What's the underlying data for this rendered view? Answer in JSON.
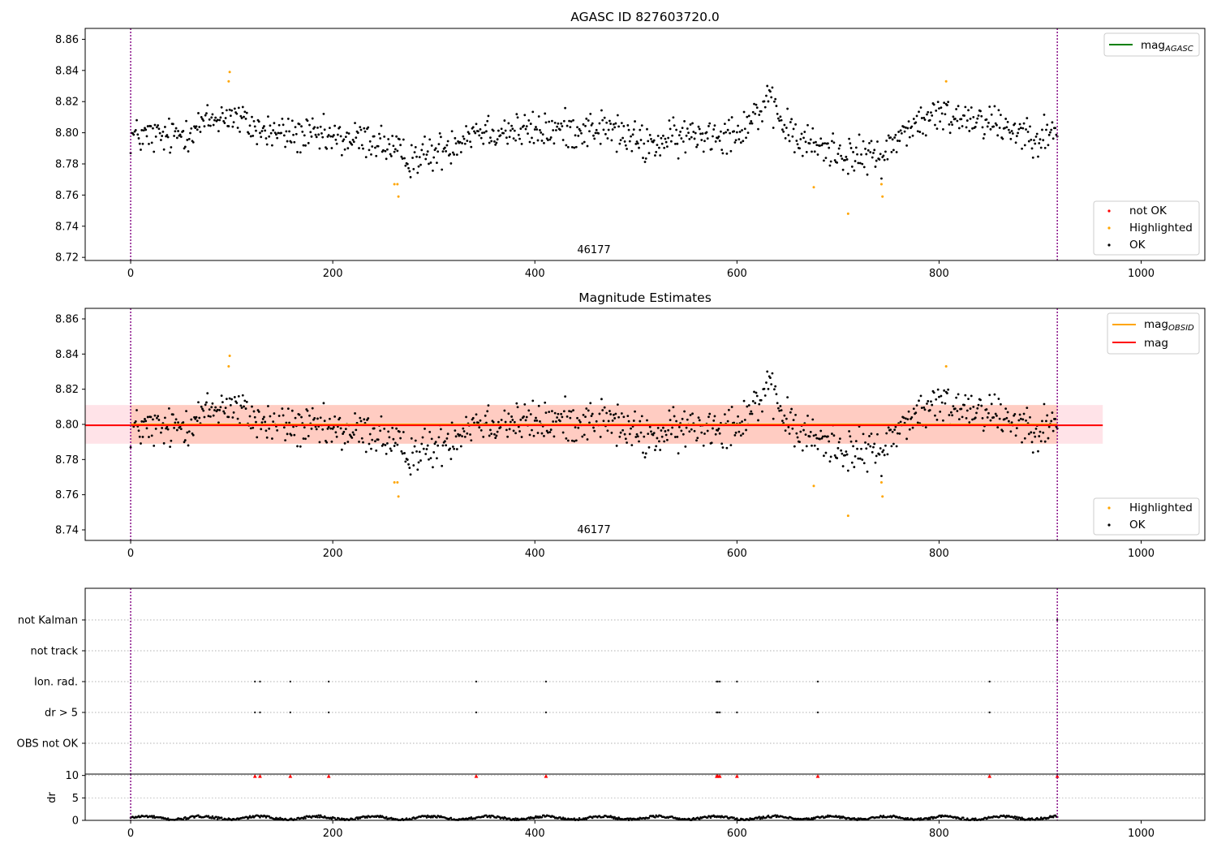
{
  "chart_data": [
    {
      "id": "top",
      "type": "scatter",
      "title": "AGASC ID 827603720.0",
      "xlim": [
        -45,
        1063
      ],
      "ylim": [
        8.718,
        8.867
      ],
      "xticks": [
        0,
        200,
        400,
        600,
        800,
        1000
      ],
      "yticks": [
        8.72,
        8.74,
        8.76,
        8.78,
        8.8,
        8.82,
        8.84,
        8.86
      ],
      "ytick_decimals": 2,
      "annotation": "46177",
      "annotation_x": 460,
      "vlines_x": [
        0,
        917
      ],
      "legend_lines": [
        {
          "label": "mag",
          "sub": "AGASC",
          "color": "#008000"
        }
      ],
      "legend_points": [
        {
          "label": "not OK",
          "color": "#ff0000"
        },
        {
          "label": "Highlighted",
          "color": "#ffa500"
        },
        {
          "label": "OK",
          "color": "#000000"
        }
      ],
      "series": [
        {
          "label": "Highlighted",
          "color": "#ffa500",
          "points": [
            [
              97,
              8.833
            ],
            [
              98,
              8.839
            ],
            [
              261,
              8.767
            ],
            [
              264,
              8.767
            ],
            [
              265,
              8.759
            ],
            [
              676,
              8.765
            ],
            [
              710,
              8.748
            ],
            [
              743,
              8.767
            ],
            [
              744,
              8.759
            ],
            [
              807,
              8.833
            ]
          ]
        }
      ]
    },
    {
      "id": "middle",
      "type": "scatter",
      "title": "Magnitude Estimates",
      "xlim": [
        -45,
        1063
      ],
      "ylim": [
        8.734,
        8.866
      ],
      "xticks": [
        0,
        200,
        400,
        600,
        800,
        1000
      ],
      "yticks": [
        8.74,
        8.76,
        8.78,
        8.8,
        8.82,
        8.84,
        8.86
      ],
      "ytick_decimals": 2,
      "annotation": "46177",
      "annotation_x": 460,
      "vlines_x": [
        0,
        917
      ],
      "bands": [
        {
          "x0": -45,
          "x1": 962,
          "y0": 8.789,
          "y1": 8.811,
          "color": "#ffc0cb",
          "opacity": 0.45
        },
        {
          "x0": 0,
          "x1": 917,
          "y0": 8.789,
          "y1": 8.811,
          "color": "#ffa07a",
          "opacity": 0.35
        }
      ],
      "hlines": [
        {
          "y": 8.8,
          "x0": 0,
          "x1": 917,
          "color": "#ffa500"
        },
        {
          "y": 8.7995,
          "x0": -45,
          "x1": 962,
          "color": "#ff0000"
        }
      ],
      "legend_lines": [
        {
          "label": "mag",
          "sub": "OBSID",
          "color": "#ffa500"
        },
        {
          "label": "mag",
          "sub": "",
          "color": "#ff0000"
        }
      ],
      "legend_points": [
        {
          "label": "Highlighted",
          "color": "#ffa500"
        },
        {
          "label": "OK",
          "color": "#000000"
        }
      ],
      "series": [
        {
          "label": "Highlighted",
          "color": "#ffa500",
          "points": [
            [
              97,
              8.833
            ],
            [
              98,
              8.839
            ],
            [
              261,
              8.767
            ],
            [
              264,
              8.767
            ],
            [
              265,
              8.759
            ],
            [
              676,
              8.765
            ],
            [
              710,
              8.748
            ],
            [
              743,
              8.767
            ],
            [
              744,
              8.759
            ],
            [
              807,
              8.833
            ]
          ]
        }
      ]
    },
    {
      "id": "flags",
      "type": "scatter",
      "title": "",
      "xlim": [
        -45,
        1063
      ],
      "categories": [
        "not Kalman",
        "not track",
        "Ion. rad.",
        "dr > 5",
        "OBS not OK"
      ],
      "vlines_x": [
        0,
        917
      ],
      "series": [
        {
          "label": "not Kalman",
          "points_x": [
            917
          ]
        },
        {
          "label": "Ion. rad.",
          "points_x": [
            123,
            128,
            158,
            196,
            342,
            411,
            580,
            581,
            583,
            600,
            680,
            850
          ]
        },
        {
          "label": "dr > 5",
          "points_x": [
            123,
            128,
            158,
            196,
            342,
            411,
            580,
            581,
            583,
            600,
            680,
            850
          ]
        }
      ]
    },
    {
      "id": "dr",
      "type": "scatter",
      "title": "",
      "ylabel": "dr",
      "xlim": [
        -45,
        1063
      ],
      "ylim": [
        0,
        10.3
      ],
      "xticks": [
        0,
        200,
        400,
        600,
        800,
        1000
      ],
      "yticks": [
        0,
        5,
        10
      ],
      "ytick_decimals": 0,
      "vlines_x": [
        0,
        917
      ],
      "series": [
        {
          "label": "dr > 5",
          "color": "#ff0000",
          "marker": "triangle",
          "points": [
            [
              123,
              9.8
            ],
            [
              128,
              9.8
            ],
            [
              158,
              9.8
            ],
            [
              196,
              9.8
            ],
            [
              342,
              9.8
            ],
            [
              411,
              9.8
            ],
            [
              580,
              9.8
            ],
            [
              581,
              9.8
            ],
            [
              583,
              9.8
            ],
            [
              600,
              9.8
            ],
            [
              680,
              9.8
            ],
            [
              850,
              9.8
            ],
            [
              917,
              9.8
            ]
          ]
        }
      ]
    }
  ]
}
